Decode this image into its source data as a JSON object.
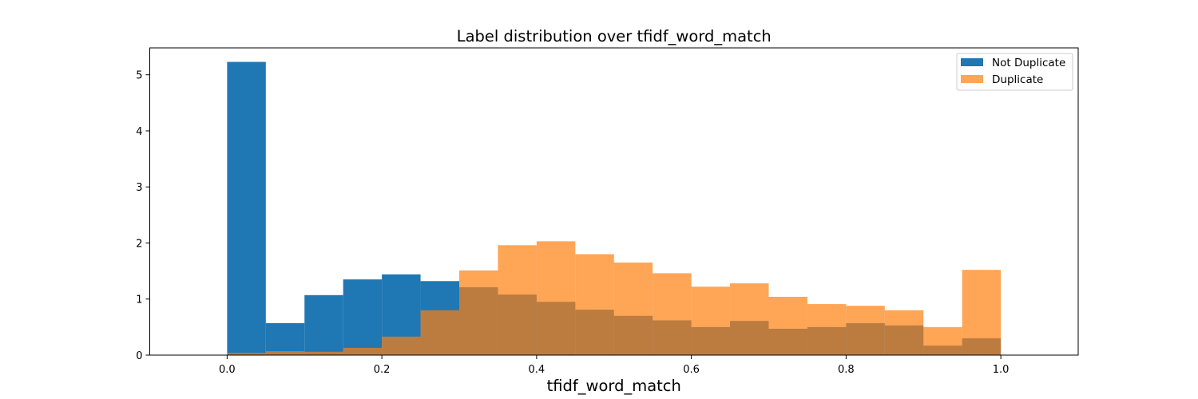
{
  "chart_data": {
    "type": "bar",
    "title": "Label distribution over tfidf_word_match",
    "xlabel": "tfidf_word_match",
    "ylabel": "",
    "xlim": [
      -0.1,
      1.1
    ],
    "ylim": [
      0,
      5.48
    ],
    "xticks": [
      0.0,
      0.2,
      0.4,
      0.6,
      0.8,
      1.0
    ],
    "xtick_labels": [
      "0.0",
      "0.2",
      "0.4",
      "0.6",
      "0.8",
      "1.0"
    ],
    "yticks": [
      0,
      1,
      2,
      3,
      4,
      5
    ],
    "ytick_labels": [
      "0",
      "1",
      "2",
      "3",
      "4",
      "5"
    ],
    "grid": false,
    "legend_position": "top-right",
    "bin_edges": [
      0.0,
      0.05,
      0.1,
      0.15,
      0.2,
      0.25,
      0.3,
      0.35,
      0.4,
      0.45,
      0.5,
      0.55,
      0.6,
      0.65,
      0.7,
      0.75,
      0.8,
      0.85,
      0.9,
      0.95,
      1.0
    ],
    "series": [
      {
        "name": "Not Duplicate",
        "color": "#1f77b4",
        "opacity": 1.0,
        "values": [
          5.23,
          0.57,
          1.07,
          1.35,
          1.44,
          1.32,
          1.21,
          1.08,
          0.95,
          0.81,
          0.7,
          0.62,
          0.5,
          0.61,
          0.47,
          0.5,
          0.57,
          0.53,
          0.17,
          0.3
        ]
      },
      {
        "name": "Duplicate",
        "color": "#ff7f0e",
        "opacity": 0.7,
        "values": [
          0.04,
          0.07,
          0.06,
          0.13,
          0.33,
          0.8,
          1.51,
          1.96,
          2.03,
          1.8,
          1.65,
          1.46,
          1.22,
          1.28,
          1.04,
          0.91,
          0.88,
          0.8,
          0.5,
          1.52
        ]
      }
    ]
  }
}
